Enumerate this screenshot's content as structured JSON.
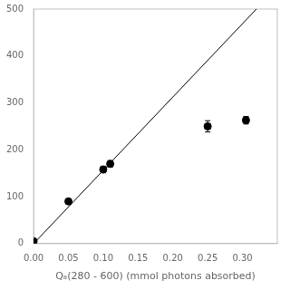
{
  "chart_data": {
    "type": "scatter",
    "xlabel": "Qₐ(280 - 600) (mmol photons absorbed)",
    "xlim": [
      0,
      0.35
    ],
    "ylim": [
      0,
      500
    ],
    "xticks": [
      {
        "value": 0,
        "label": "0.00"
      },
      0.05,
      {
        "value": 0.1,
        "label": "0.10"
      },
      0.15,
      {
        "value": 0.2,
        "label": "0.20"
      },
      0.25,
      {
        "value": 0.3,
        "label": "0.30"
      }
    ],
    "yticks": [
      0,
      100,
      200,
      300,
      400,
      500
    ],
    "grid": false,
    "series": [
      {
        "type": "line",
        "color": "#000000",
        "x": [
          0,
          0.32
        ],
        "values": [
          0,
          500
        ]
      },
      {
        "type": "scatter",
        "color": "#000000",
        "marker": "circle",
        "x": [
          0.0,
          0.05,
          0.1,
          0.11,
          0.25,
          0.305
        ],
        "values": [
          5,
          90,
          158,
          170,
          250,
          263
        ],
        "xerr": [
          0.0,
          0.0,
          0.002,
          0.003,
          0.004,
          0.004
        ],
        "yerr": [
          3,
          4,
          7,
          7,
          12,
          8
        ]
      }
    ]
  }
}
